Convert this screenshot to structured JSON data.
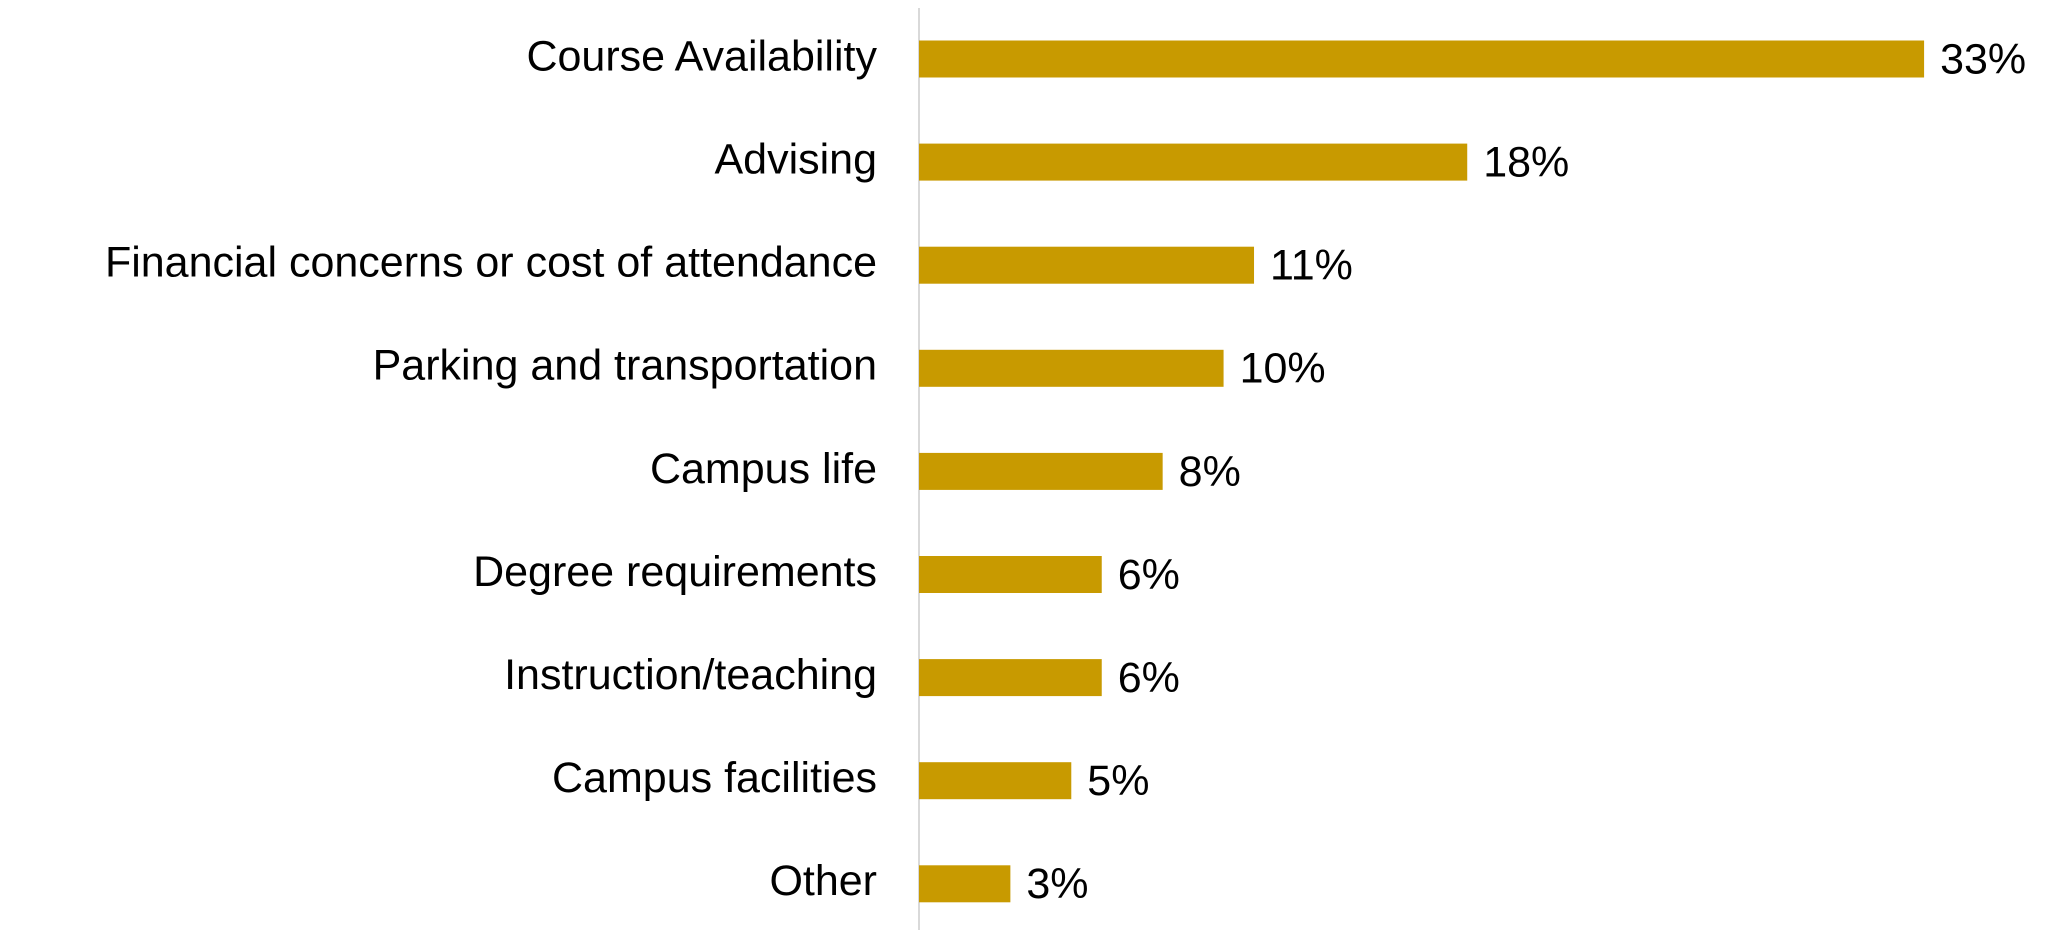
{
  "chart_data": {
    "type": "bar",
    "orientation": "horizontal",
    "categories": [
      "Course Availability",
      "Advising",
      "Financial concerns or cost of attendance",
      "Parking and transportation",
      "Campus life",
      "Degree requirements",
      "Instruction/teaching",
      "Campus facilities",
      "Other"
    ],
    "values": [
      33,
      18,
      11,
      10,
      8,
      6,
      6,
      5,
      3
    ],
    "value_labels": [
      "33%",
      "18%",
      "11%",
      "10%",
      "8%",
      "6%",
      "6%",
      "5%",
      "3%"
    ],
    "color": "#c89a00",
    "xlim": [
      0,
      35
    ]
  }
}
